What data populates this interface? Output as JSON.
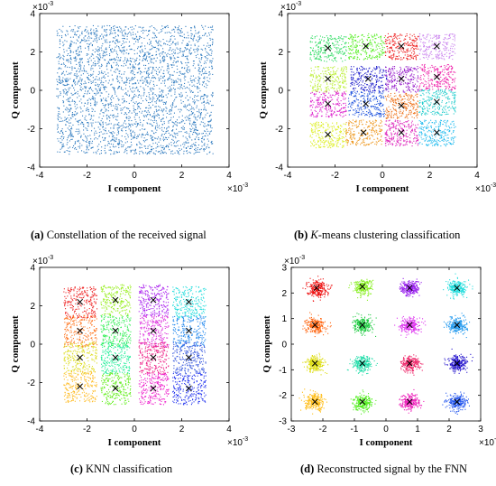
{
  "chart_data": [
    {
      "type": "scatter",
      "panel": "a",
      "caption_letter": "(a)",
      "caption_text": "Constellation of the received signal",
      "xlabel": "I component",
      "ylabel": "Q component",
      "x_exponent": "×10",
      "y_exponent": "×10",
      "exponent_power": "-3",
      "xlim": [
        -4,
        4
      ],
      "ylim": [
        -4,
        4
      ],
      "xticks": [
        "-4",
        "-2",
        "0",
        "2",
        "4"
      ],
      "yticks": [
        "-4",
        "-2",
        "0",
        "2",
        "4"
      ],
      "grid": false,
      "series": [
        {
          "color": "#2f7bbf",
          "region": {
            "x": [
              -3.3,
              3.3
            ],
            "y": [
              -3.3,
              3.4
            ]
          },
          "points_approx": 3000
        }
      ],
      "centroids": []
    },
    {
      "type": "scatter",
      "panel": "b",
      "caption_letter": "(b)",
      "caption_italic": "K",
      "caption_text": "-means clustering classification",
      "xlabel": "I component",
      "ylabel": "Q component",
      "x_exponent": "×10",
      "y_exponent": "×10",
      "exponent_power": "-3",
      "xlim": [
        -4,
        4
      ],
      "ylim": [
        -4,
        4
      ],
      "xticks": [
        "-4",
        "-2",
        "0",
        "2",
        "4"
      ],
      "yticks": [
        "-4",
        "-2",
        "0",
        "2",
        "4"
      ],
      "grid": false,
      "clusters": [
        {
          "cx": -2.3,
          "cy": 2.2,
          "sx": 0.55,
          "sy": 0.45,
          "color": "#33dd66"
        },
        {
          "cx": -0.7,
          "cy": 2.3,
          "sx": 0.55,
          "sy": 0.45,
          "color": "#55ee22"
        },
        {
          "cx": 0.8,
          "cy": 2.3,
          "sx": 0.5,
          "sy": 0.45,
          "color": "#ee2222"
        },
        {
          "cx": 2.3,
          "cy": 2.3,
          "sx": 0.55,
          "sy": 0.45,
          "color": "#cc88ee"
        },
        {
          "cx": -2.3,
          "cy": 0.6,
          "sx": 0.55,
          "sy": 0.45,
          "color": "#bbee33"
        },
        {
          "cx": -0.6,
          "cy": 0.6,
          "sx": 0.55,
          "sy": 0.45,
          "color": "#2222cc"
        },
        {
          "cx": 0.8,
          "cy": 0.6,
          "sx": 0.5,
          "sy": 0.45,
          "color": "#9922cc"
        },
        {
          "cx": 2.3,
          "cy": 0.7,
          "sx": 0.55,
          "sy": 0.45,
          "color": "#ee22aa"
        },
        {
          "cx": -2.3,
          "cy": -0.7,
          "sx": 0.55,
          "sy": 0.45,
          "color": "#dd22cc"
        },
        {
          "cx": -0.7,
          "cy": -0.7,
          "sx": 0.55,
          "sy": 0.45,
          "color": "#2255dd"
        },
        {
          "cx": 0.8,
          "cy": -0.8,
          "sx": 0.5,
          "sy": 0.45,
          "color": "#ee7722"
        },
        {
          "cx": 2.3,
          "cy": -0.6,
          "sx": 0.55,
          "sy": 0.45,
          "color": "#22cccc"
        },
        {
          "cx": -2.3,
          "cy": -2.3,
          "sx": 0.55,
          "sy": 0.45,
          "color": "#ddee22"
        },
        {
          "cx": -0.8,
          "cy": -2.2,
          "sx": 0.55,
          "sy": 0.45,
          "color": "#ee9922"
        },
        {
          "cx": 0.8,
          "cy": -2.2,
          "sx": 0.5,
          "sy": 0.45,
          "color": "#dd22bb"
        },
        {
          "cx": 2.3,
          "cy": -2.2,
          "sx": 0.55,
          "sy": 0.45,
          "color": "#22bbee"
        }
      ]
    },
    {
      "type": "scatter",
      "panel": "c",
      "caption_letter": "(c)",
      "caption_text": "KNN classification",
      "xlabel": "I component",
      "ylabel": "Q component",
      "x_exponent": "×10",
      "y_exponent": "×10",
      "exponent_power": "-3",
      "xlim": [
        -4,
        4
      ],
      "ylim": [
        -4,
        4
      ],
      "xticks": [
        "-4",
        "-2",
        "0",
        "2",
        "4"
      ],
      "yticks": [
        "-4",
        "-2",
        "0",
        "2",
        "4"
      ],
      "grid": false,
      "clusters": [
        {
          "cx": -2.3,
          "cy": 2.2,
          "sx": 0.5,
          "sy": 0.55,
          "color": "#ee2222"
        },
        {
          "cx": -0.8,
          "cy": 2.3,
          "sx": 0.45,
          "sy": 0.55,
          "color": "#99ee22"
        },
        {
          "cx": 0.8,
          "cy": 2.3,
          "sx": 0.45,
          "sy": 0.55,
          "color": "#aa22ee"
        },
        {
          "cx": 2.3,
          "cy": 2.2,
          "sx": 0.5,
          "sy": 0.55,
          "color": "#22dddd"
        },
        {
          "cx": -2.3,
          "cy": 0.7,
          "sx": 0.5,
          "sy": 0.55,
          "color": "#ff7722"
        },
        {
          "cx": -0.8,
          "cy": 0.7,
          "sx": 0.45,
          "sy": 0.55,
          "color": "#33ee55"
        },
        {
          "cx": 0.8,
          "cy": 0.7,
          "sx": 0.45,
          "sy": 0.55,
          "color": "#dd33dd"
        },
        {
          "cx": 2.3,
          "cy": 0.7,
          "sx": 0.5,
          "sy": 0.55,
          "color": "#2288ee"
        },
        {
          "cx": -2.3,
          "cy": -0.7,
          "sx": 0.5,
          "sy": 0.55,
          "color": "#dddd22"
        },
        {
          "cx": -0.8,
          "cy": -0.7,
          "sx": 0.45,
          "sy": 0.55,
          "color": "#22ee99"
        },
        {
          "cx": 0.8,
          "cy": -0.7,
          "sx": 0.45,
          "sy": 0.55,
          "color": "#ee2288"
        },
        {
          "cx": 2.3,
          "cy": -0.7,
          "sx": 0.5,
          "sy": 0.55,
          "color": "#3355dd"
        },
        {
          "cx": -2.3,
          "cy": -2.2,
          "sx": 0.5,
          "sy": 0.55,
          "color": "#ffbb22"
        },
        {
          "cx": -0.8,
          "cy": -2.3,
          "sx": 0.45,
          "sy": 0.55,
          "color": "#66ee22"
        },
        {
          "cx": 0.8,
          "cy": -2.3,
          "sx": 0.45,
          "sy": 0.55,
          "color": "#ee22cc"
        },
        {
          "cx": 2.3,
          "cy": -2.3,
          "sx": 0.5,
          "sy": 0.55,
          "color": "#2233ee"
        }
      ]
    },
    {
      "type": "scatter",
      "panel": "d",
      "caption_letter": "(d)",
      "caption_text": "Reconstructed signal by the FNN",
      "xlabel": "I component",
      "ylabel": "Q component",
      "x_exponent": "×10",
      "y_exponent": "×10",
      "exponent_power": "-3",
      "xlim": [
        -3,
        3
      ],
      "ylim": [
        -3,
        3
      ],
      "xticks": [
        "-3",
        "-2",
        "-1",
        "0",
        "1",
        "2",
        "3"
      ],
      "yticks": [
        "-3",
        "-2",
        "-1",
        "0",
        "1",
        "2",
        "3"
      ],
      "grid": false,
      "clusters": [
        {
          "cx": -2.2,
          "cy": 2.2,
          "sx": 0.16,
          "sy": 0.16,
          "color": "#ee1111"
        },
        {
          "cx": -0.75,
          "cy": 2.25,
          "sx": 0.15,
          "sy": 0.15,
          "color": "#88ee22"
        },
        {
          "cx": 0.75,
          "cy": 2.2,
          "sx": 0.15,
          "sy": 0.15,
          "color": "#9922ee"
        },
        {
          "cx": 2.25,
          "cy": 2.2,
          "sx": 0.15,
          "sy": 0.15,
          "color": "#22dddd"
        },
        {
          "cx": -2.25,
          "cy": 0.75,
          "sx": 0.15,
          "sy": 0.15,
          "color": "#ff6611"
        },
        {
          "cx": -0.75,
          "cy": 0.75,
          "sx": 0.15,
          "sy": 0.15,
          "color": "#22cc44"
        },
        {
          "cx": 0.75,
          "cy": 0.75,
          "sx": 0.15,
          "sy": 0.15,
          "color": "#dd33ee"
        },
        {
          "cx": 2.25,
          "cy": 0.75,
          "sx": 0.15,
          "sy": 0.15,
          "color": "#2299ee"
        },
        {
          "cx": -2.25,
          "cy": -0.75,
          "sx": 0.15,
          "sy": 0.15,
          "color": "#dddd11"
        },
        {
          "cx": -0.75,
          "cy": -0.75,
          "sx": 0.15,
          "sy": 0.15,
          "color": "#22ddaa"
        },
        {
          "cx": 0.75,
          "cy": -0.75,
          "sx": 0.15,
          "sy": 0.15,
          "color": "#ee2266"
        },
        {
          "cx": 2.25,
          "cy": -0.75,
          "sx": 0.15,
          "sy": 0.15,
          "color": "#2211cc"
        },
        {
          "cx": -2.25,
          "cy": -2.25,
          "sx": 0.16,
          "sy": 0.16,
          "color": "#ffbb11"
        },
        {
          "cx": -0.75,
          "cy": -2.25,
          "sx": 0.15,
          "sy": 0.15,
          "color": "#55ee22"
        },
        {
          "cx": 0.75,
          "cy": -2.25,
          "sx": 0.15,
          "sy": 0.15,
          "color": "#ee22bb"
        },
        {
          "cx": 2.25,
          "cy": -2.25,
          "sx": 0.15,
          "sy": 0.15,
          "color": "#2255ee"
        }
      ]
    }
  ]
}
